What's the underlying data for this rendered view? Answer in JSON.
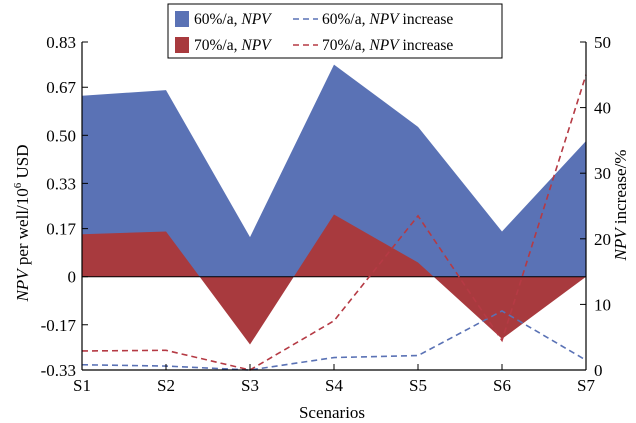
{
  "chart_data": {
    "type": "area",
    "categories": [
      "S1",
      "S2",
      "S3",
      "S4",
      "S5",
      "S6",
      "S7"
    ],
    "xlabel": "Scenarios",
    "ylabel_left": {
      "prefix": "NPV",
      "rest": " per well/10",
      "sup": "6",
      "unit": " USD"
    },
    "ylabel_right": {
      "prefix": "NPV",
      "rest": " increase/%"
    },
    "ylim_left": [
      -0.33,
      0.83
    ],
    "ylim_right": [
      0,
      50
    ],
    "yticks_left": [
      "0.83",
      "0.67",
      "0.50",
      "0.33",
      "0.17",
      "0",
      "-0.17",
      "-0.33"
    ],
    "yticks_left_values": [
      0.83,
      0.67,
      0.5,
      0.33,
      0.17,
      0,
      -0.17,
      -0.33
    ],
    "yticks_right": [
      "50",
      "40",
      "30",
      "20",
      "10",
      "0"
    ],
    "yticks_right_values": [
      50,
      40,
      30,
      20,
      10,
      0
    ],
    "grid": false,
    "legend_position": "top",
    "series": [
      {
        "name": "60%/a, NPV",
        "label_parts": [
          "60%/a, ",
          "NPV",
          ""
        ],
        "kind": "area",
        "axis": "left",
        "color": "#5a72b5",
        "values": [
          0.64,
          0.66,
          0.14,
          0.75,
          0.53,
          0.16,
          0.48
        ]
      },
      {
        "name": "70%/a, NPV",
        "label_parts": [
          "70%/a, ",
          "NPV",
          ""
        ],
        "kind": "area",
        "axis": "left",
        "color": "#a83a3e",
        "values": [
          0.15,
          0.16,
          -0.24,
          0.22,
          0.05,
          -0.22,
          0.0
        ]
      },
      {
        "name": "60%/a, NPV increase",
        "label_parts": [
          "60%/a, ",
          "NPV",
          " increase"
        ],
        "kind": "line",
        "axis": "right",
        "color": "#5a72b5",
        "values": [
          0.8,
          0.6,
          0.0,
          1.9,
          2.2,
          9.0,
          1.5
        ]
      },
      {
        "name": "70%/a, NPV increase",
        "label_parts": [
          "70%/a, ",
          "NPV",
          " increase"
        ],
        "kind": "line",
        "axis": "right",
        "color": "#b53a44",
        "values": [
          2.9,
          3.0,
          0.0,
          7.5,
          23.5,
          4.5,
          45.0
        ]
      }
    ]
  }
}
